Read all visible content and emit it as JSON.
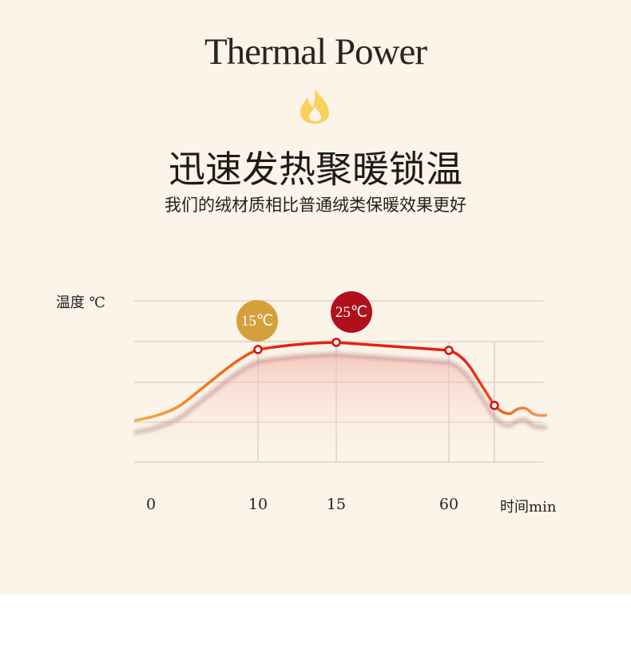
{
  "header": {
    "title": "Thermal Power",
    "flame_icon": "flame-icon",
    "headline": "迅速发热聚暖锁温",
    "subtitle": "我们的绒材质相比普通绒类保暖效果更好"
  },
  "colors": {
    "background": "#fcf3e9",
    "curve": "#e8200e",
    "bubble_low": "#d4a03c",
    "bubble_high": "#b0101a"
  },
  "chart_data": {
    "type": "line",
    "ylabel": "温度 ℃",
    "xlabel": "时间min",
    "x_ticks": [
      "0",
      "10",
      "15",
      "60"
    ],
    "grid": true,
    "annotations": [
      {
        "x": "10",
        "label": "15℃"
      },
      {
        "x": "15",
        "label": "25℃"
      }
    ],
    "markers": [
      "10",
      "15",
      "60"
    ]
  }
}
